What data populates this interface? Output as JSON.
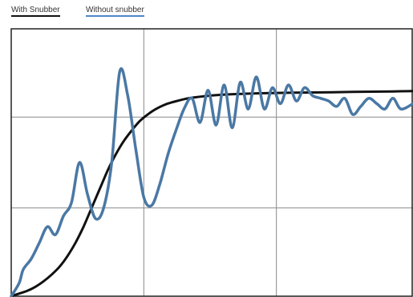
{
  "legend": {
    "with_snubber": "With Snubber",
    "without_snubber": "Without snubber"
  },
  "colors": {
    "with_snubber": "#111111",
    "without_snubber": "#4a78a4",
    "grid": "#8a8a8a",
    "frame": "#222222"
  },
  "chart_data": {
    "type": "line",
    "grid": true,
    "legend_position": "top-left",
    "xlim": [
      0,
      100
    ],
    "ylim": [
      0,
      100
    ],
    "grid_x": [
      33,
      66
    ],
    "grid_y": [
      33,
      67
    ],
    "series": [
      {
        "name": "With Snubber",
        "x": [
          0,
          2,
          4,
          6,
          8,
          10,
          12,
          14,
          16,
          18,
          20,
          22,
          24,
          26,
          28,
          30,
          32,
          34,
          36,
          38,
          40,
          44,
          48,
          52,
          56,
          60,
          65,
          70,
          75,
          80,
          85,
          90,
          95,
          100
        ],
        "y": [
          0,
          1,
          2,
          3.5,
          5.5,
          8,
          11,
          15,
          20,
          26,
          33,
          40,
          47,
          53,
          58,
          62,
          65.5,
          68,
          70,
          71.5,
          72.5,
          74,
          74.8,
          75.3,
          75.6,
          75.8,
          76,
          76.1,
          76.2,
          76.3,
          76.4,
          76.5,
          76.6,
          76.7
        ]
      },
      {
        "name": "Without snubber",
        "x": [
          0,
          2,
          3,
          5,
          7,
          9,
          11,
          13,
          15,
          17,
          19,
          21,
          23,
          25,
          27,
          29,
          31,
          33,
          35,
          37,
          39,
          41,
          43,
          45,
          47,
          49,
          51,
          53,
          55,
          57,
          59,
          61,
          63,
          65,
          67,
          69,
          71,
          73,
          75,
          77,
          79,
          81,
          83,
          85,
          87,
          89,
          91,
          93,
          95,
          97,
          100
        ],
        "y": [
          0,
          5,
          10,
          14,
          20,
          26,
          23,
          30,
          35,
          50,
          38,
          29,
          33,
          50,
          84,
          75,
          55,
          37,
          34,
          42,
          53,
          62,
          70,
          74,
          65,
          77,
          64,
          79,
          63,
          80,
          70,
          82,
          70,
          78,
          72,
          79,
          73,
          78,
          75,
          74,
          73,
          71,
          74,
          68,
          71,
          74,
          72,
          70,
          74,
          70,
          72
        ]
      }
    ]
  }
}
